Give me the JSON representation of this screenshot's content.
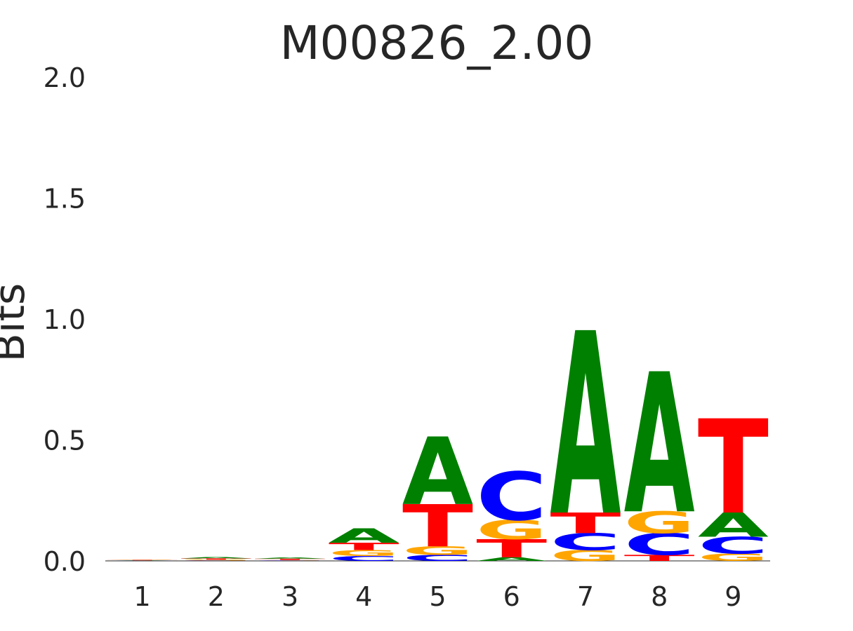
{
  "chart_data": {
    "type": "sequence-logo",
    "title": "M00826_2.00",
    "xlabel": "",
    "ylabel": "Bits",
    "ylim": [
      0,
      2.0
    ],
    "yticks": [
      "0.0",
      "0.5",
      "1.0",
      "1.5",
      "2.0"
    ],
    "categories": [
      "1",
      "2",
      "3",
      "4",
      "5",
      "6",
      "7",
      "8",
      "9"
    ],
    "colors": {
      "A": "#008000",
      "C": "#0000ff",
      "G": "#ffa500",
      "T": "#ff0000"
    },
    "positions": [
      {
        "position": "1",
        "letters": [
          {
            "base": "C",
            "bits": 0.001
          },
          {
            "base": "A",
            "bits": 0.001
          },
          {
            "base": "T",
            "bits": 0.002
          },
          {
            "base": "G",
            "bits": 0.002
          }
        ]
      },
      {
        "position": "2",
        "letters": [
          {
            "base": "C",
            "bits": 0.002
          },
          {
            "base": "G",
            "bits": 0.003
          },
          {
            "base": "T",
            "bits": 0.005
          },
          {
            "base": "A",
            "bits": 0.006
          }
        ]
      },
      {
        "position": "3",
        "letters": [
          {
            "base": "C",
            "bits": 0.002
          },
          {
            "base": "G",
            "bits": 0.002
          },
          {
            "base": "T",
            "bits": 0.005
          },
          {
            "base": "A",
            "bits": 0.005
          }
        ]
      },
      {
        "position": "4",
        "letters": [
          {
            "base": "C",
            "bits": 0.02
          },
          {
            "base": "G",
            "bits": 0.025
          },
          {
            "base": "T",
            "bits": 0.03
          },
          {
            "base": "A",
            "bits": 0.06
          }
        ]
      },
      {
        "position": "5",
        "letters": [
          {
            "base": "C",
            "bits": 0.025
          },
          {
            "base": "G",
            "bits": 0.035
          },
          {
            "base": "T",
            "bits": 0.175
          },
          {
            "base": "A",
            "bits": 0.28
          }
        ]
      },
      {
        "position": "6",
        "letters": [
          {
            "base": "A",
            "bits": 0.015
          },
          {
            "base": "T",
            "bits": 0.075
          },
          {
            "base": "G",
            "bits": 0.08
          },
          {
            "base": "C",
            "bits": 0.2
          }
        ]
      },
      {
        "position": "7",
        "letters": [
          {
            "base": "G",
            "bits": 0.045
          },
          {
            "base": "C",
            "bits": 0.07
          },
          {
            "base": "T",
            "bits": 0.085
          },
          {
            "base": "A",
            "bits": 0.755
          }
        ]
      },
      {
        "position": "8",
        "letters": [
          {
            "base": "T",
            "bits": 0.025
          },
          {
            "base": "C",
            "bits": 0.09
          },
          {
            "base": "G",
            "bits": 0.09
          },
          {
            "base": "A",
            "bits": 0.58
          }
        ]
      },
      {
        "position": "9",
        "letters": [
          {
            "base": "G",
            "bits": 0.03
          },
          {
            "base": "C",
            "bits": 0.07
          },
          {
            "base": "A",
            "bits": 0.1
          },
          {
            "base": "T",
            "bits": 0.39
          }
        ]
      }
    ]
  }
}
